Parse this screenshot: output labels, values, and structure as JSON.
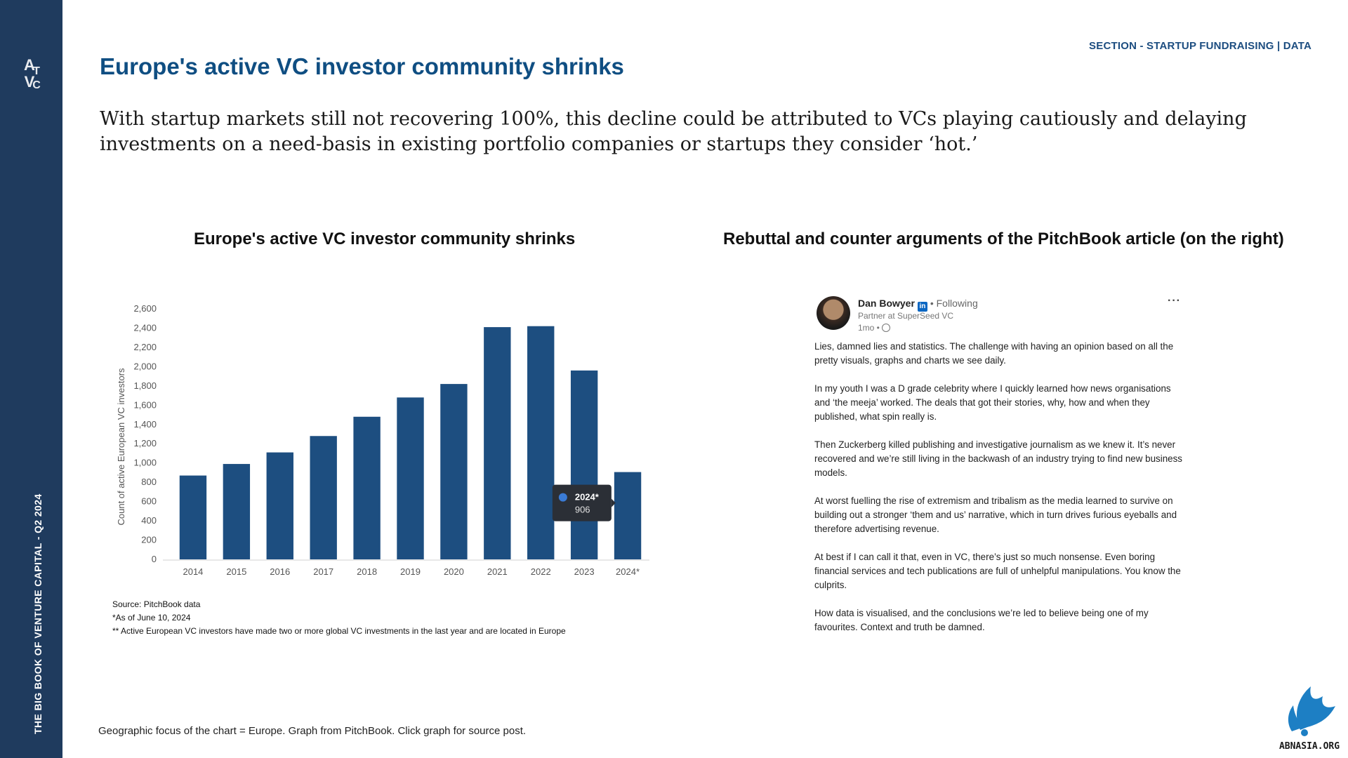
{
  "sidebar": {
    "logo_text": "ATVC",
    "vertical_label": "THE BIG BOOK OF VENTURE CAPITAL - Q2 2024"
  },
  "header": {
    "section_label": "SECTION - STARTUP FUNDRAISING | DATA",
    "title": "Europe's active VC investor community shrinks",
    "subtitle": "With startup markets still not recovering 100%, this decline could be attributed to VCs playing cautiously and delaying investments on a need-basis in existing portfolio companies or startups they consider ‘hot.’"
  },
  "left_panel": {
    "heading": "Europe's active VC investor community shrinks"
  },
  "right_panel": {
    "heading": "Rebuttal and counter arguments of the PitchBook article (on the right)"
  },
  "chart_data": {
    "type": "bar",
    "title": "",
    "xlabel": "",
    "ylabel": "Count of active European VC investors",
    "categories": [
      "2014",
      "2015",
      "2016",
      "2017",
      "2018",
      "2019",
      "2020",
      "2021",
      "2022",
      "2023",
      "2024*"
    ],
    "values": [
      870,
      990,
      1110,
      1280,
      1480,
      1680,
      1820,
      2410,
      2420,
      1960,
      906
    ],
    "ylim": [
      0,
      2600
    ],
    "yticks": [
      "0",
      "200",
      "400",
      "600",
      "800",
      "1,000",
      "1,200",
      "1,400",
      "1,600",
      "1,800",
      "2,000",
      "2,200",
      "2,400",
      "2,600"
    ],
    "grid": false,
    "bar_color": "#1d4e80",
    "tooltip": {
      "label": "2024*",
      "value": "906"
    }
  },
  "chart_notes": [
    "Source: PitchBook data",
    "*As of June 10, 2024",
    "** Active European VC investors have made two or more global VC investments in the last year and are located in Europe"
  ],
  "post": {
    "author": "Dan Bowyer",
    "linkedin_badge": "in",
    "following": "• Following",
    "role": "Partner at SuperSeed VC",
    "time": "1mo •",
    "more": "···",
    "paragraphs": [
      "Lies, damned lies and statistics. The challenge with having an opinion based on all the pretty visuals, graphs and charts we see daily.",
      "In my youth I was a D grade celebrity where I quickly learned how news organisations and ‘the meeja’ worked. The deals that got their stories, why, how and when they published, what spin really is.",
      "Then Zuckerberg killed publishing and investigative journalism as we knew it. It’s never recovered and we’re still living in the backwash of an industry trying to find new business models.",
      "At worst fuelling the rise of extremism and tribalism as the media learned to survive on building out a stronger ‘them and us’ narrative, which in turn drives furious eyeballs and therefore advertising revenue.",
      "At best if I can call it that, even in VC, there’s just so much nonsense. Even boring financial services and tech publications are full of unhelpful manipulations. You know the culprits.",
      "How data is visualised, and the conclusions we’re led to believe being one of my favourites. Context and truth be damned."
    ]
  },
  "footer": {
    "note": "Geographic focus of the chart = Europe. Graph from PitchBook. Click graph for source post.",
    "corner_logo_text": "ABNASIA.ORG"
  }
}
